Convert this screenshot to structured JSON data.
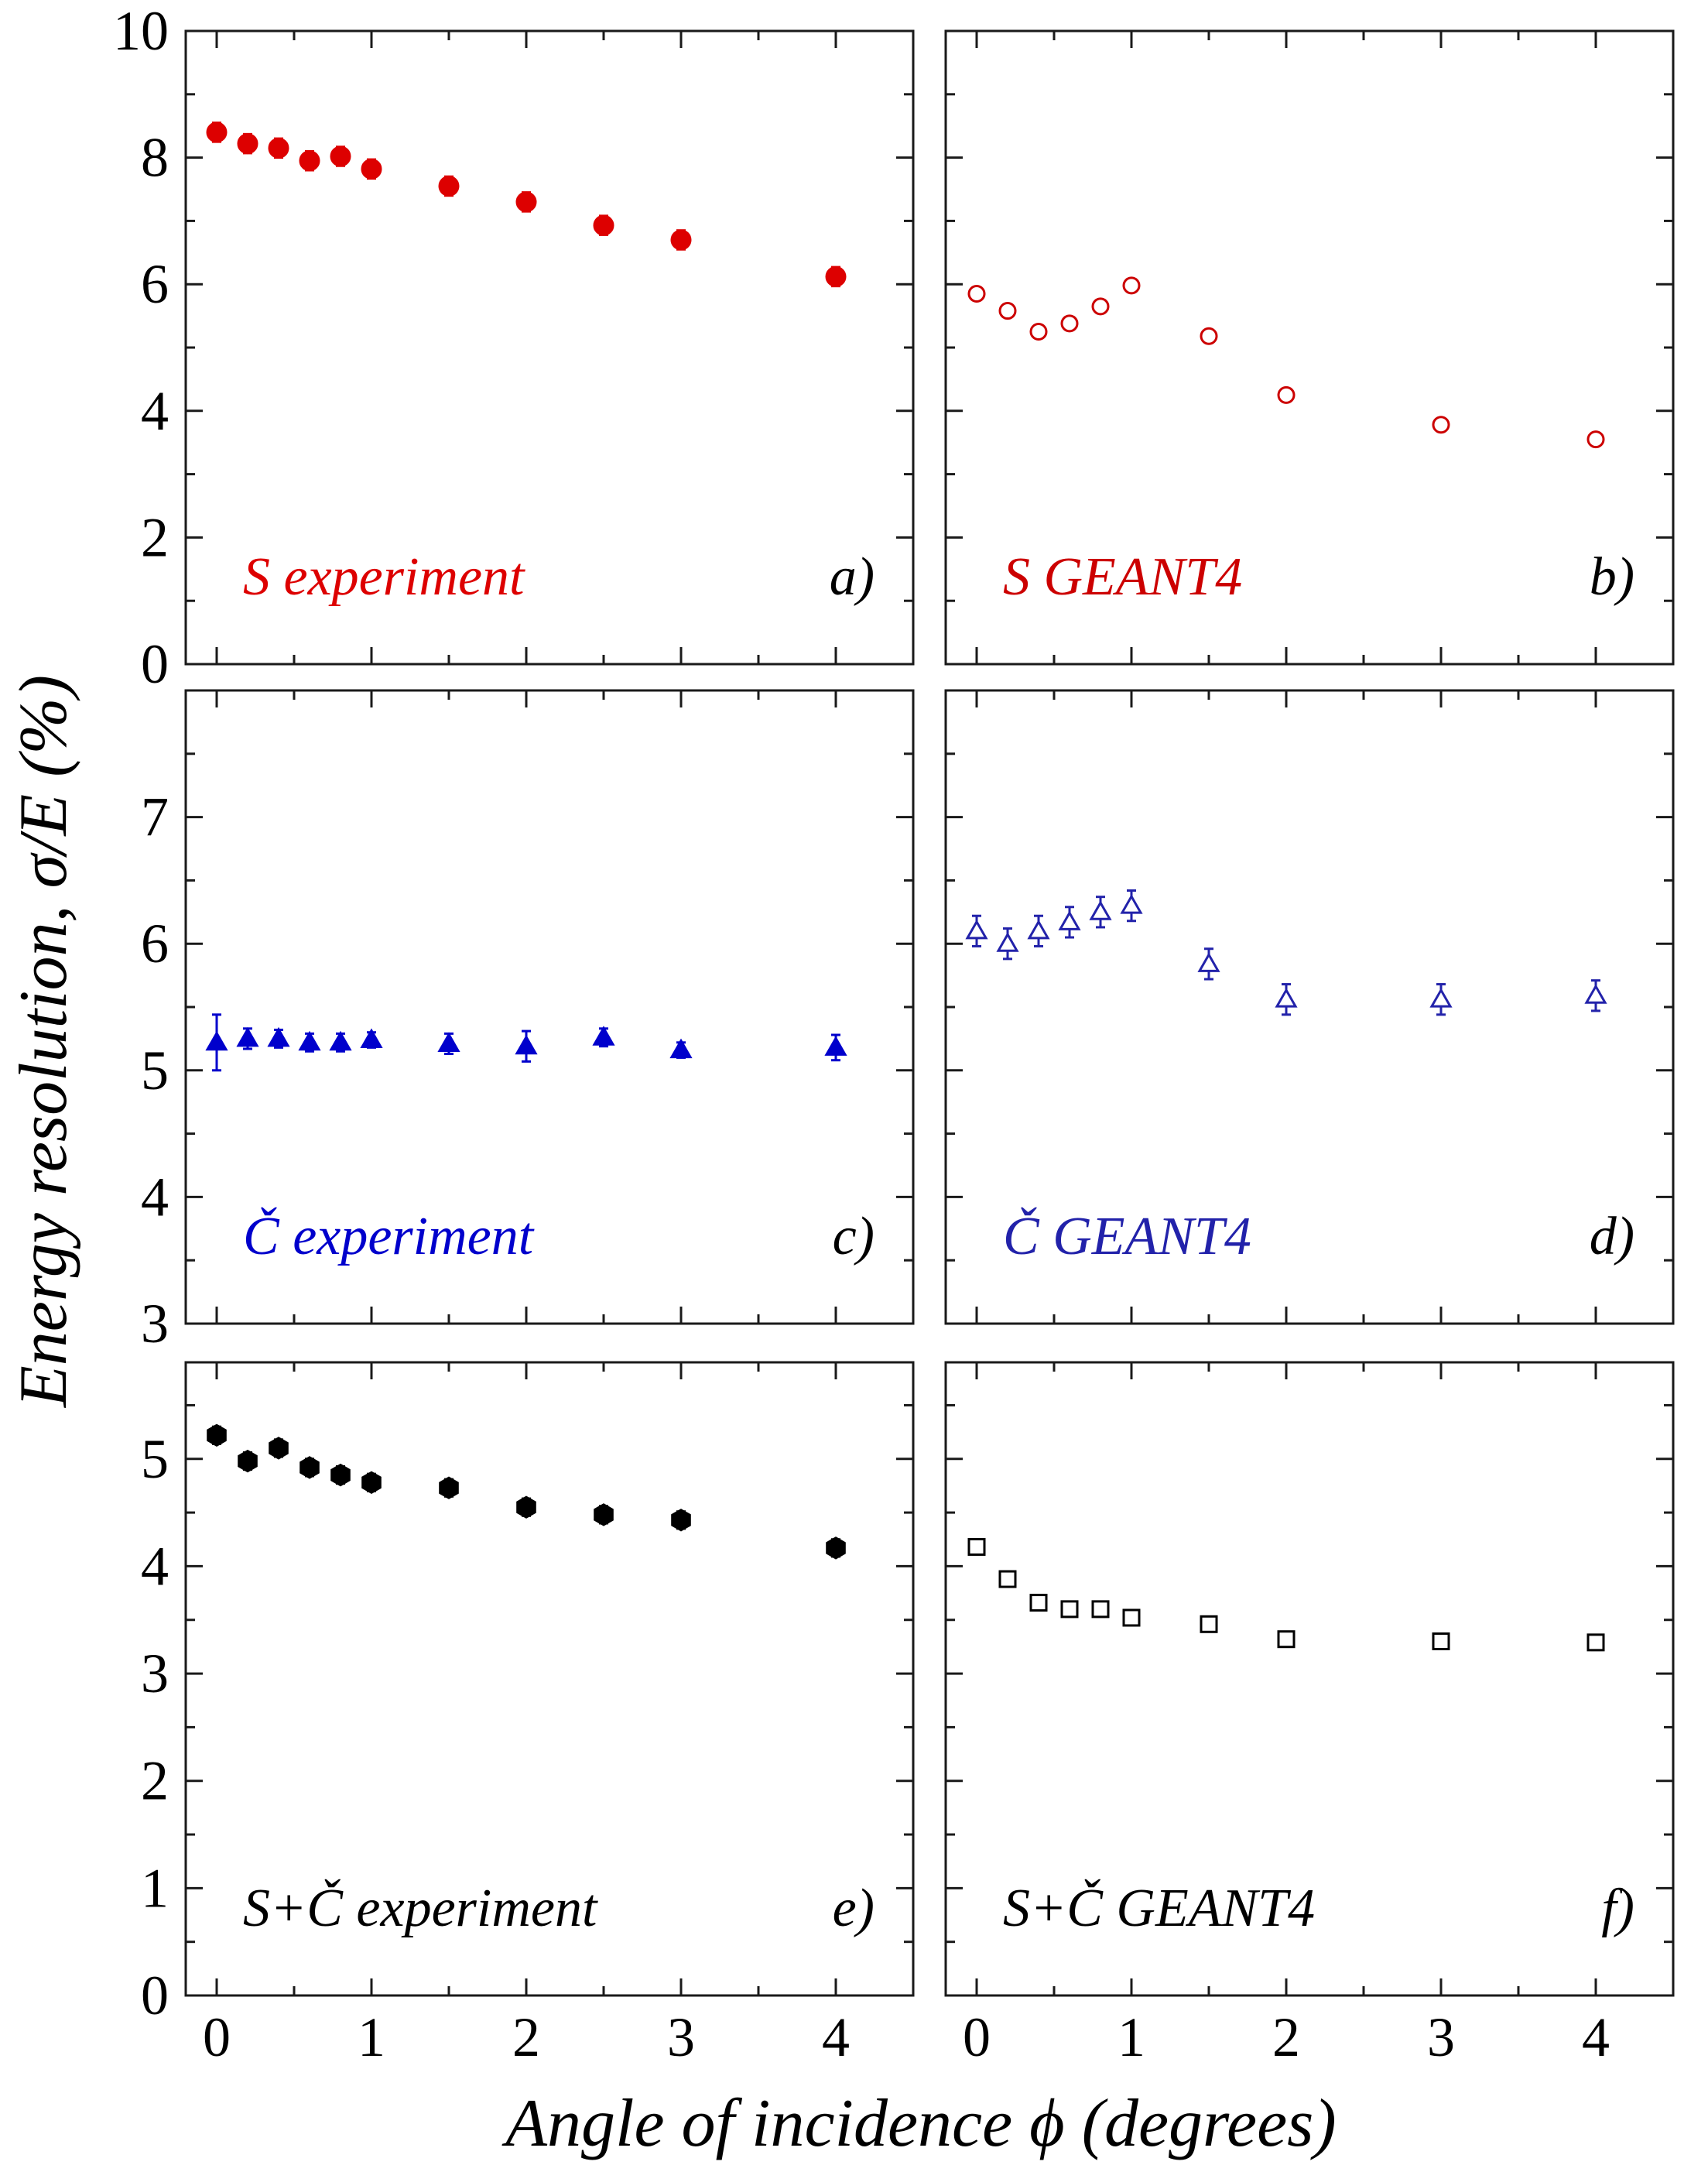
{
  "chart_data": {
    "type": "scatter",
    "ylabel": "Energy resolution, σ/E (%)",
    "xlabel": "Angle of incidence ϕ (degrees)",
    "x_ticks": [
      0,
      1,
      2,
      3,
      4
    ],
    "xlim": [
      -0.2,
      4.5
    ],
    "grid": false,
    "panels": [
      {
        "id": "a",
        "label": "S experiment",
        "tag": "a)",
        "color": "#dd0000",
        "marker": "circle",
        "filled": true,
        "ylim": [
          0,
          10
        ],
        "y_ticks": [
          0,
          2,
          4,
          6,
          8,
          10
        ],
        "points": [
          {
            "x": 0,
            "y": 8.4,
            "err": 0.15
          },
          {
            "x": 0.2,
            "y": 8.22,
            "err": 0.15
          },
          {
            "x": 0.4,
            "y": 8.15,
            "err": 0.15
          },
          {
            "x": 0.6,
            "y": 7.95,
            "err": 0.15
          },
          {
            "x": 0.8,
            "y": 8.02,
            "err": 0.15
          },
          {
            "x": 1,
            "y": 7.82,
            "err": 0.15
          },
          {
            "x": 1.5,
            "y": 7.55,
            "err": 0.15
          },
          {
            "x": 2,
            "y": 7.3,
            "err": 0.15
          },
          {
            "x": 2.5,
            "y": 6.93,
            "err": 0.15
          },
          {
            "x": 3,
            "y": 6.7,
            "err": 0.15
          },
          {
            "x": 4,
            "y": 6.12,
            "err": 0.15
          }
        ]
      },
      {
        "id": "b",
        "label": "S  GEANT4",
        "tag": "b)",
        "color": "#cc0000",
        "marker": "circle",
        "filled": false,
        "ylim": [
          0,
          10
        ],
        "y_ticks": [
          0,
          2,
          4,
          6,
          8,
          10
        ],
        "points": [
          {
            "x": 0,
            "y": 5.85,
            "err": 0.1
          },
          {
            "x": 0.2,
            "y": 5.58,
            "err": 0.1
          },
          {
            "x": 0.4,
            "y": 5.25,
            "err": 0.1
          },
          {
            "x": 0.6,
            "y": 5.38,
            "err": 0.1
          },
          {
            "x": 0.8,
            "y": 5.65,
            "err": 0.1
          },
          {
            "x": 1,
            "y": 5.98,
            "err": 0.1
          },
          {
            "x": 1.5,
            "y": 5.18,
            "err": 0.1
          },
          {
            "x": 2,
            "y": 4.25,
            "err": 0.1
          },
          {
            "x": 3,
            "y": 3.78,
            "err": 0.1
          },
          {
            "x": 4,
            "y": 3.55,
            "err": 0.1
          }
        ]
      },
      {
        "id": "c",
        "label": "Č experiment",
        "tag": "c)",
        "color": "#0000cc",
        "marker": "triangle",
        "filled": true,
        "ylim": [
          3,
          8
        ],
        "y_ticks": [
          3,
          4,
          5,
          6,
          7
        ],
        "points": [
          {
            "x": 0,
            "y": 5.22,
            "err": 0.22
          },
          {
            "x": 0.2,
            "y": 5.25,
            "err": 0.08
          },
          {
            "x": 0.4,
            "y": 5.25,
            "err": 0.07
          },
          {
            "x": 0.6,
            "y": 5.22,
            "err": 0.07
          },
          {
            "x": 0.8,
            "y": 5.22,
            "err": 0.07
          },
          {
            "x": 1,
            "y": 5.24,
            "err": 0.06
          },
          {
            "x": 1.5,
            "y": 5.21,
            "err": 0.08
          },
          {
            "x": 2,
            "y": 5.19,
            "err": 0.12
          },
          {
            "x": 2.5,
            "y": 5.26,
            "err": 0.07
          },
          {
            "x": 3,
            "y": 5.16,
            "err": 0.06
          },
          {
            "x": 4,
            "y": 5.18,
            "err": 0.1
          }
        ]
      },
      {
        "id": "d",
        "label": "Č  GEANT4",
        "tag": "d)",
        "color": "#2222aa",
        "marker": "triangle",
        "filled": false,
        "ylim": [
          3,
          8
        ],
        "y_ticks": [
          3,
          4,
          5,
          6,
          7
        ],
        "points": [
          {
            "x": 0,
            "y": 6.1,
            "err": 0.12
          },
          {
            "x": 0.2,
            "y": 6.0,
            "err": 0.12
          },
          {
            "x": 0.4,
            "y": 6.1,
            "err": 0.12
          },
          {
            "x": 0.6,
            "y": 6.17,
            "err": 0.12
          },
          {
            "x": 0.8,
            "y": 6.25,
            "err": 0.12
          },
          {
            "x": 1,
            "y": 6.3,
            "err": 0.12
          },
          {
            "x": 1.5,
            "y": 5.84,
            "err": 0.12
          },
          {
            "x": 2,
            "y": 5.56,
            "err": 0.12
          },
          {
            "x": 3,
            "y": 5.56,
            "err": 0.12
          },
          {
            "x": 4,
            "y": 5.59,
            "err": 0.12
          }
        ]
      },
      {
        "id": "e",
        "label": "S+Č experiment",
        "tag": "e)",
        "color": "#000000",
        "marker": "hexagon",
        "filled": true,
        "ylim": [
          0,
          5.9
        ],
        "y_ticks": [
          0,
          1,
          2,
          3,
          4,
          5
        ],
        "points": [
          {
            "x": 0,
            "y": 5.22,
            "err": 0.08
          },
          {
            "x": 0.2,
            "y": 4.98,
            "err": 0.08
          },
          {
            "x": 0.4,
            "y": 5.1,
            "err": 0.08
          },
          {
            "x": 0.6,
            "y": 4.92,
            "err": 0.08
          },
          {
            "x": 0.8,
            "y": 4.85,
            "err": 0.08
          },
          {
            "x": 1,
            "y": 4.78,
            "err": 0.08
          },
          {
            "x": 1.5,
            "y": 4.73,
            "err": 0.08
          },
          {
            "x": 2,
            "y": 4.55,
            "err": 0.08
          },
          {
            "x": 2.5,
            "y": 4.48,
            "err": 0.08
          },
          {
            "x": 3,
            "y": 4.43,
            "err": 0.08
          },
          {
            "x": 4,
            "y": 4.17,
            "err": 0.08
          }
        ]
      },
      {
        "id": "f",
        "label": "S+Č  GEANT4",
        "tag": "f)",
        "color": "#000000",
        "marker": "square",
        "filled": false,
        "ylim": [
          0,
          5.9
        ],
        "y_ticks": [
          0,
          1,
          2,
          3,
          4,
          5
        ],
        "points": [
          {
            "x": 0,
            "y": 4.18,
            "err": 0.07
          },
          {
            "x": 0.2,
            "y": 3.88,
            "err": 0.07
          },
          {
            "x": 0.4,
            "y": 3.66,
            "err": 0.07
          },
          {
            "x": 0.6,
            "y": 3.6,
            "err": 0.07
          },
          {
            "x": 0.8,
            "y": 3.6,
            "err": 0.07
          },
          {
            "x": 1,
            "y": 3.52,
            "err": 0.07
          },
          {
            "x": 1.5,
            "y": 3.46,
            "err": 0.07
          },
          {
            "x": 2,
            "y": 3.32,
            "err": 0.07
          },
          {
            "x": 3,
            "y": 3.3,
            "err": 0.07
          },
          {
            "x": 4,
            "y": 3.29,
            "err": 0.07
          }
        ]
      }
    ]
  }
}
